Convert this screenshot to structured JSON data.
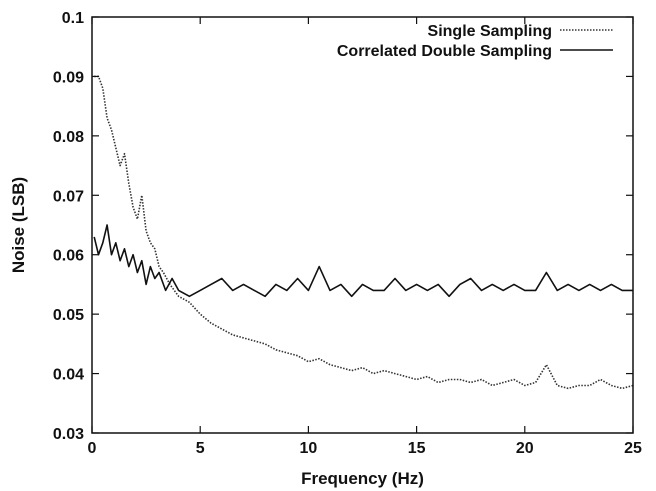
{
  "chart_data": {
    "type": "line",
    "title": "",
    "xlabel": "Frequency (Hz)",
    "ylabel": "Noise (LSB)",
    "xlim": [
      0,
      25
    ],
    "ylim": [
      0.03,
      0.1
    ],
    "x_ticks": [
      0,
      5,
      10,
      15,
      20,
      25
    ],
    "x_tick_labels": [
      "0",
      "5",
      "10",
      "15",
      "20",
      "25"
    ],
    "y_ticks": [
      0.03,
      0.04,
      0.05,
      0.06,
      0.07,
      0.08,
      0.09,
      0.1
    ],
    "y_tick_labels": [
      "0.03",
      "0.04",
      "0.05",
      "0.06",
      "0.07",
      "0.08",
      "0.09",
      "0.1"
    ],
    "grid": false,
    "legend_position": "top-right",
    "series": [
      {
        "name": "Single Sampling",
        "style": "dotted",
        "color": "#333333",
        "x": [
          0.1,
          0.3,
          0.5,
          0.7,
          0.9,
          1.1,
          1.3,
          1.5,
          1.7,
          1.9,
          2.1,
          2.3,
          2.5,
          2.7,
          2.9,
          3.1,
          3.3,
          3.6,
          4.0,
          4.5,
          5.0,
          5.5,
          6.0,
          6.5,
          7.0,
          7.5,
          8.0,
          8.5,
          9.0,
          9.5,
          10.0,
          10.5,
          11.0,
          11.5,
          12.0,
          12.5,
          13.0,
          13.5,
          14.0,
          14.5,
          15.0,
          15.5,
          16.0,
          16.5,
          17.0,
          17.5,
          18.0,
          18.5,
          19.0,
          19.5,
          20.0,
          20.5,
          21.0,
          21.5,
          22.0,
          22.5,
          23.0,
          23.5,
          24.0,
          24.5,
          25.0
        ],
        "values": [
          0.09,
          0.09,
          0.088,
          0.083,
          0.081,
          0.078,
          0.075,
          0.077,
          0.072,
          0.068,
          0.066,
          0.07,
          0.064,
          0.062,
          0.061,
          0.058,
          0.057,
          0.055,
          0.053,
          0.052,
          0.05,
          0.0485,
          0.0475,
          0.0465,
          0.046,
          0.0455,
          0.045,
          0.044,
          0.0435,
          0.043,
          0.042,
          0.0425,
          0.0415,
          0.041,
          0.0405,
          0.041,
          0.04,
          0.0405,
          0.04,
          0.0395,
          0.039,
          0.0395,
          0.0385,
          0.039,
          0.039,
          0.0385,
          0.039,
          0.038,
          0.0385,
          0.039,
          0.038,
          0.0385,
          0.0415,
          0.038,
          0.0375,
          0.038,
          0.038,
          0.039,
          0.038,
          0.0375,
          0.038
        ]
      },
      {
        "name": "Correlated Double Sampling",
        "style": "solid",
        "color": "#111111",
        "x": [
          0.1,
          0.3,
          0.5,
          0.7,
          0.9,
          1.1,
          1.3,
          1.5,
          1.7,
          1.9,
          2.1,
          2.3,
          2.5,
          2.7,
          2.9,
          3.1,
          3.4,
          3.7,
          4.0,
          4.5,
          5.0,
          5.5,
          6.0,
          6.5,
          7.0,
          7.5,
          8.0,
          8.5,
          9.0,
          9.5,
          10.0,
          10.5,
          11.0,
          11.5,
          12.0,
          12.5,
          13.0,
          13.5,
          14.0,
          14.5,
          15.0,
          15.5,
          16.0,
          16.5,
          17.0,
          17.5,
          18.0,
          18.5,
          19.0,
          19.5,
          20.0,
          20.5,
          21.0,
          21.5,
          22.0,
          22.5,
          23.0,
          23.5,
          24.0,
          24.5,
          25.0
        ],
        "values": [
          0.063,
          0.06,
          0.062,
          0.065,
          0.06,
          0.062,
          0.059,
          0.061,
          0.058,
          0.06,
          0.057,
          0.059,
          0.055,
          0.058,
          0.056,
          0.057,
          0.054,
          0.056,
          0.054,
          0.053,
          0.054,
          0.055,
          0.056,
          0.054,
          0.055,
          0.054,
          0.053,
          0.055,
          0.054,
          0.056,
          0.054,
          0.058,
          0.054,
          0.055,
          0.053,
          0.055,
          0.054,
          0.054,
          0.056,
          0.054,
          0.055,
          0.054,
          0.055,
          0.053,
          0.055,
          0.056,
          0.054,
          0.055,
          0.054,
          0.055,
          0.054,
          0.054,
          0.057,
          0.054,
          0.055,
          0.054,
          0.055,
          0.054,
          0.055,
          0.054,
          0.054
        ]
      }
    ]
  }
}
